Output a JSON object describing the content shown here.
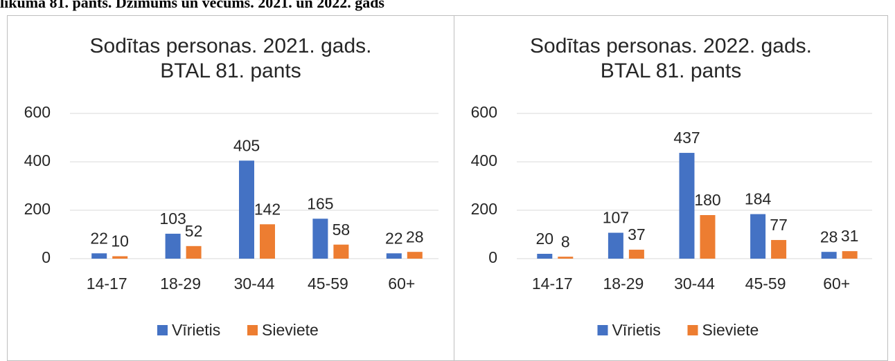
{
  "header": "likuma 81. pants. Dzimums un vecums. 2021. un 2022. gads",
  "chart_data": [
    {
      "type": "bar",
      "title": "Sodītas personas. 2021. gads. BTAL 81. pants",
      "categories": [
        "14-17",
        "18-29",
        "30-44",
        "45-59",
        "60+"
      ],
      "series": [
        {
          "name": "Vīrietis",
          "color": "#4472c4",
          "values": [
            22,
            103,
            405,
            165,
            22
          ]
        },
        {
          "name": "Sieviete",
          "color": "#ed7d31",
          "values": [
            10,
            52,
            142,
            58,
            28
          ]
        }
      ],
      "ylim": [
        0,
        600
      ],
      "yticks": [
        0,
        200,
        400,
        600
      ],
      "grid": true,
      "legend": "bottom"
    },
    {
      "type": "bar",
      "title": "Sodītas personas. 2022. gads. BTAL 81. pants",
      "categories": [
        "14-17",
        "18-29",
        "30-44",
        "45-59",
        "60+"
      ],
      "series": [
        {
          "name": "Vīrietis",
          "color": "#4472c4",
          "values": [
            20,
            107,
            437,
            184,
            28
          ]
        },
        {
          "name": "Sieviete",
          "color": "#ed7d31",
          "values": [
            8,
            37,
            180,
            77,
            31
          ]
        }
      ],
      "ylim": [
        0,
        600
      ],
      "yticks": [
        0,
        200,
        400,
        600
      ],
      "grid": true,
      "legend": "bottom"
    }
  ]
}
